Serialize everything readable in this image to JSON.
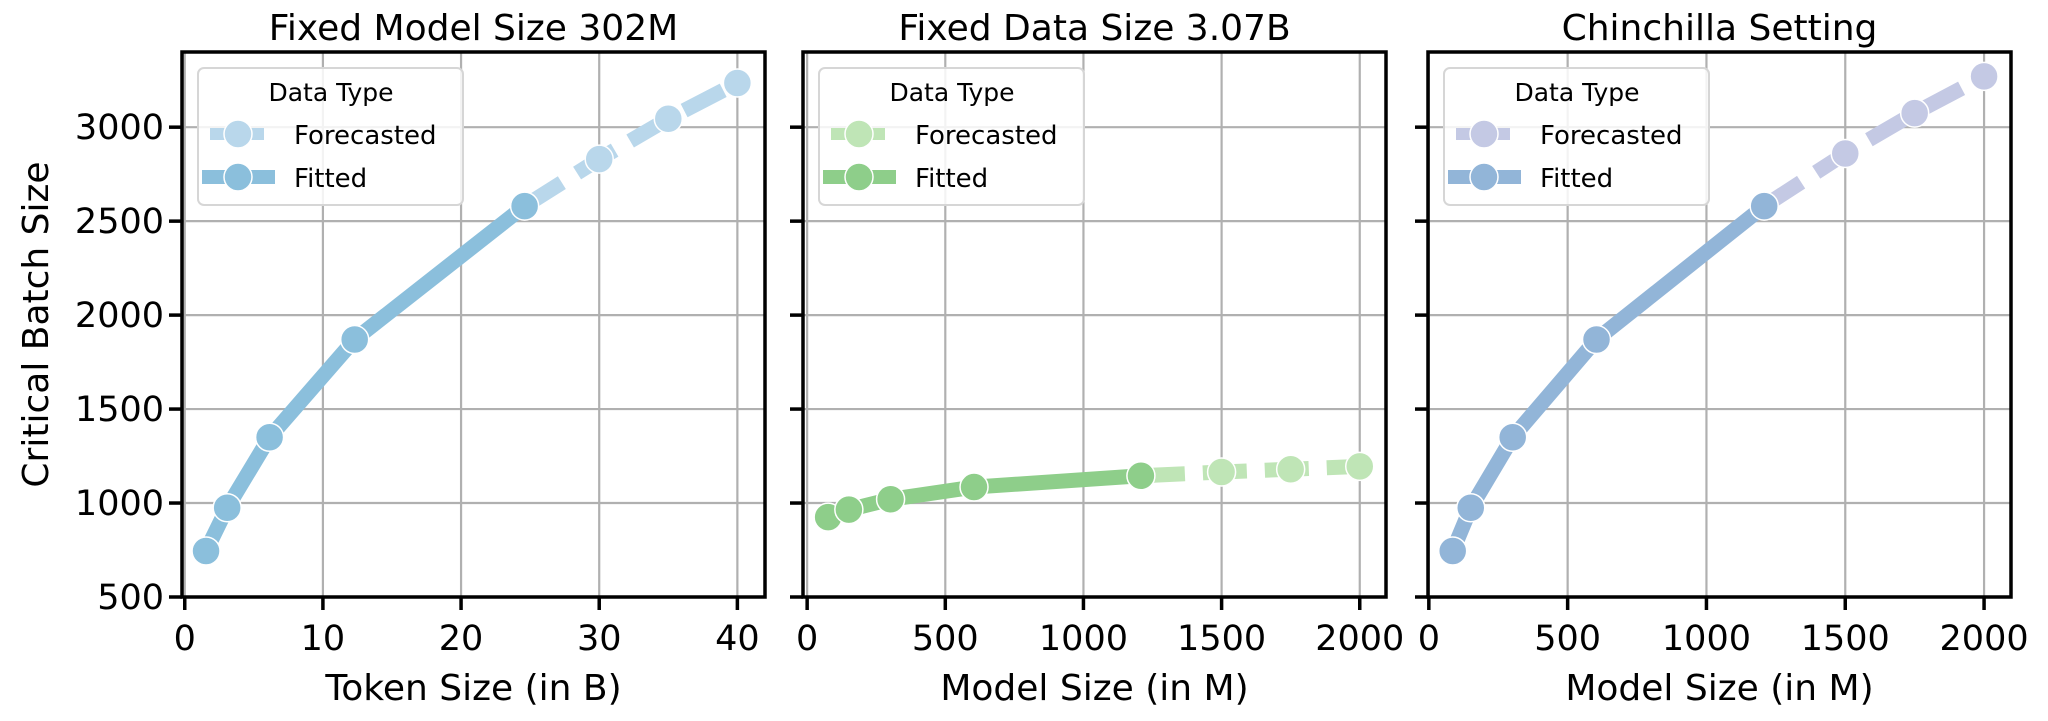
{
  "chart_data": [
    {
      "type": "line",
      "title": "Fixed Model Size 302M",
      "xlabel": "Token Size (in B)",
      "ylabel": "Critical Batch Size",
      "xlim": [
        -0.2,
        42
      ],
      "ylim": [
        500,
        3400
      ],
      "xticks": [
        0,
        10,
        20,
        30,
        40
      ],
      "yticks": [
        500,
        1000,
        1500,
        2000,
        2500,
        3000
      ],
      "show_yticklabels": true,
      "grid": true,
      "legend": {
        "title": "Data Type",
        "placement": "top-left",
        "entries": [
          "Forecasted",
          "Fitted"
        ]
      },
      "series": [
        {
          "name": "Fitted",
          "color": "#8bbfdc",
          "x": [
            1.54,
            3.07,
            6.14,
            12.3,
            24.6
          ],
          "y": [
            745,
            975,
            1350,
            1870,
            2580
          ]
        },
        {
          "name": "Forecasted",
          "color": "#b9d7eb",
          "x": [
            24.6,
            30,
            35,
            40
          ],
          "y": [
            2580,
            2830,
            3045,
            3235
          ]
        }
      ]
    },
    {
      "type": "line",
      "title": "Fixed Data Size 3.07B",
      "xlabel": "Model Size (in M)",
      "ylabel": "",
      "xlim": [
        -15,
        2095
      ],
      "ylim": [
        500,
        3400
      ],
      "xticks": [
        0,
        500,
        1000,
        1500,
        2000
      ],
      "yticks": [
        500,
        1000,
        1500,
        2000,
        2500,
        3000
      ],
      "show_yticklabels": false,
      "grid": true,
      "legend": {
        "title": "Data Type",
        "placement": "top-left",
        "entries": [
          "Forecasted",
          "Fitted"
        ]
      },
      "series": [
        {
          "name": "Fitted",
          "color": "#8ece8a",
          "x": [
            76,
            151,
            302,
            604,
            1208
          ],
          "y": [
            925,
            965,
            1020,
            1085,
            1145
          ]
        },
        {
          "name": "Forecasted",
          "color": "#bfe5b6",
          "x": [
            1208,
            1500,
            1750,
            2000
          ],
          "y": [
            1145,
            1165,
            1180,
            1195
          ]
        }
      ]
    },
    {
      "type": "line",
      "title": "Chinchilla Setting",
      "xlabel": "Model Size (in M)",
      "ylabel": "",
      "xlim": [
        -3,
        2097
      ],
      "ylim": [
        500,
        3400
      ],
      "xticks": [
        0,
        500,
        1000,
        1500,
        2000
      ],
      "yticks": [
        500,
        1000,
        1500,
        2000,
        2500,
        3000
      ],
      "show_yticklabels": false,
      "grid": true,
      "legend": {
        "title": "Data Type",
        "placement": "top-left",
        "entries": [
          "Forecasted",
          "Fitted"
        ]
      },
      "series": [
        {
          "name": "Fitted",
          "color": "#92b5d8",
          "x": [
            86,
            151,
            302,
            604,
            1208
          ],
          "y": [
            745,
            975,
            1350,
            1870,
            2580
          ]
        },
        {
          "name": "Forecasted",
          "color": "#c4c9e4",
          "x": [
            1208,
            1500,
            1750,
            2000
          ],
          "y": [
            2580,
            2860,
            3075,
            3270
          ]
        }
      ]
    }
  ]
}
